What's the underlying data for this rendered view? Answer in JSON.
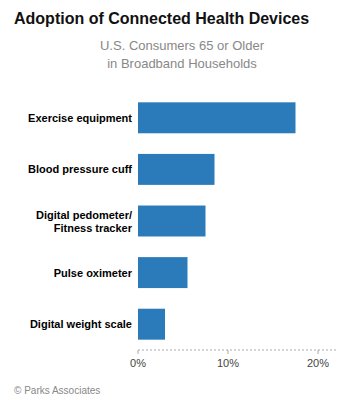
{
  "chart_data": {
    "type": "bar",
    "orientation": "horizontal",
    "title": "Adoption of Connected Health Devices",
    "subtitle": "U.S. Consumers 65 or Older\nin Broadband Households",
    "annotations": [
      "© Parks Associates"
    ],
    "categories": [
      "Digital weight scale",
      "Pulse oximeter",
      "Digital pedometer/\nFitness tracker",
      "Blood pressure cuff",
      "Exercise equipment"
    ],
    "values": [
      3.0,
      5.5,
      7.5,
      8.5,
      17.5
    ],
    "color": "#2b7bba",
    "xlim": [
      0,
      22
    ],
    "xticks": [
      {
        "value": 0,
        "label": "0%"
      },
      {
        "value": 10,
        "label": "10%"
      },
      {
        "value": 20,
        "label": "20%"
      }
    ],
    "grid": false
  }
}
